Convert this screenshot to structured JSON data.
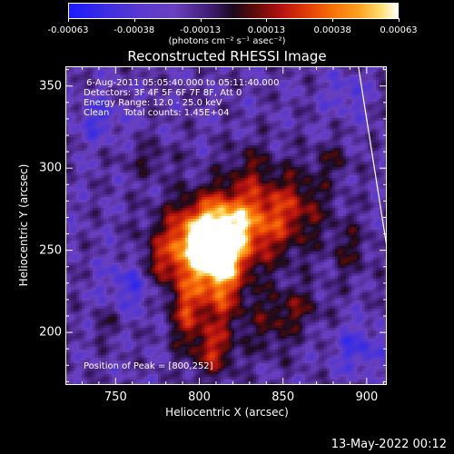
{
  "colorbar": {
    "ticks": [
      "-0.00063",
      "-0.00038",
      "-0.00013",
      "0.00013",
      "0.00038",
      "0.00063"
    ],
    "units": "(photons cm⁻² s⁻¹ asec⁻²)",
    "colors": [
      "#1a1aff",
      "#6a40c0",
      "#1a0a1a",
      "#b01010",
      "#f87008",
      "#ffffff"
    ]
  },
  "chart_data": {
    "type": "heatmap",
    "title": "Reconstructed RHESSI Image",
    "xlabel": "Heliocentric X (arcsec)",
    "ylabel": "Heliocentric Y (arcsec)",
    "xlim": [
      720,
      912
    ],
    "ylim": [
      168,
      362
    ],
    "x_ticks": [
      750,
      800,
      850,
      900
    ],
    "y_ticks": [
      200,
      250,
      300,
      350
    ],
    "value_range": [
      -0.00063,
      0.00063
    ],
    "peak": [
      800,
      252
    ],
    "info_lines": [
      " 6-Aug-2011 05:05:40.000 to 05:11:40.000",
      "Detectors: 3F 4F 5F 6F 7F 8F, Att 0",
      "Energy Range: 12.0 - 25.0 keV",
      "Clean     Total counts: 1.45E+04"
    ],
    "peak_label": "Position of Peak = [800,252]",
    "limb_line": [
      [
        895,
        362
      ],
      [
        912,
        252
      ]
    ]
  },
  "datestamp": "13-May-2022 00:12"
}
